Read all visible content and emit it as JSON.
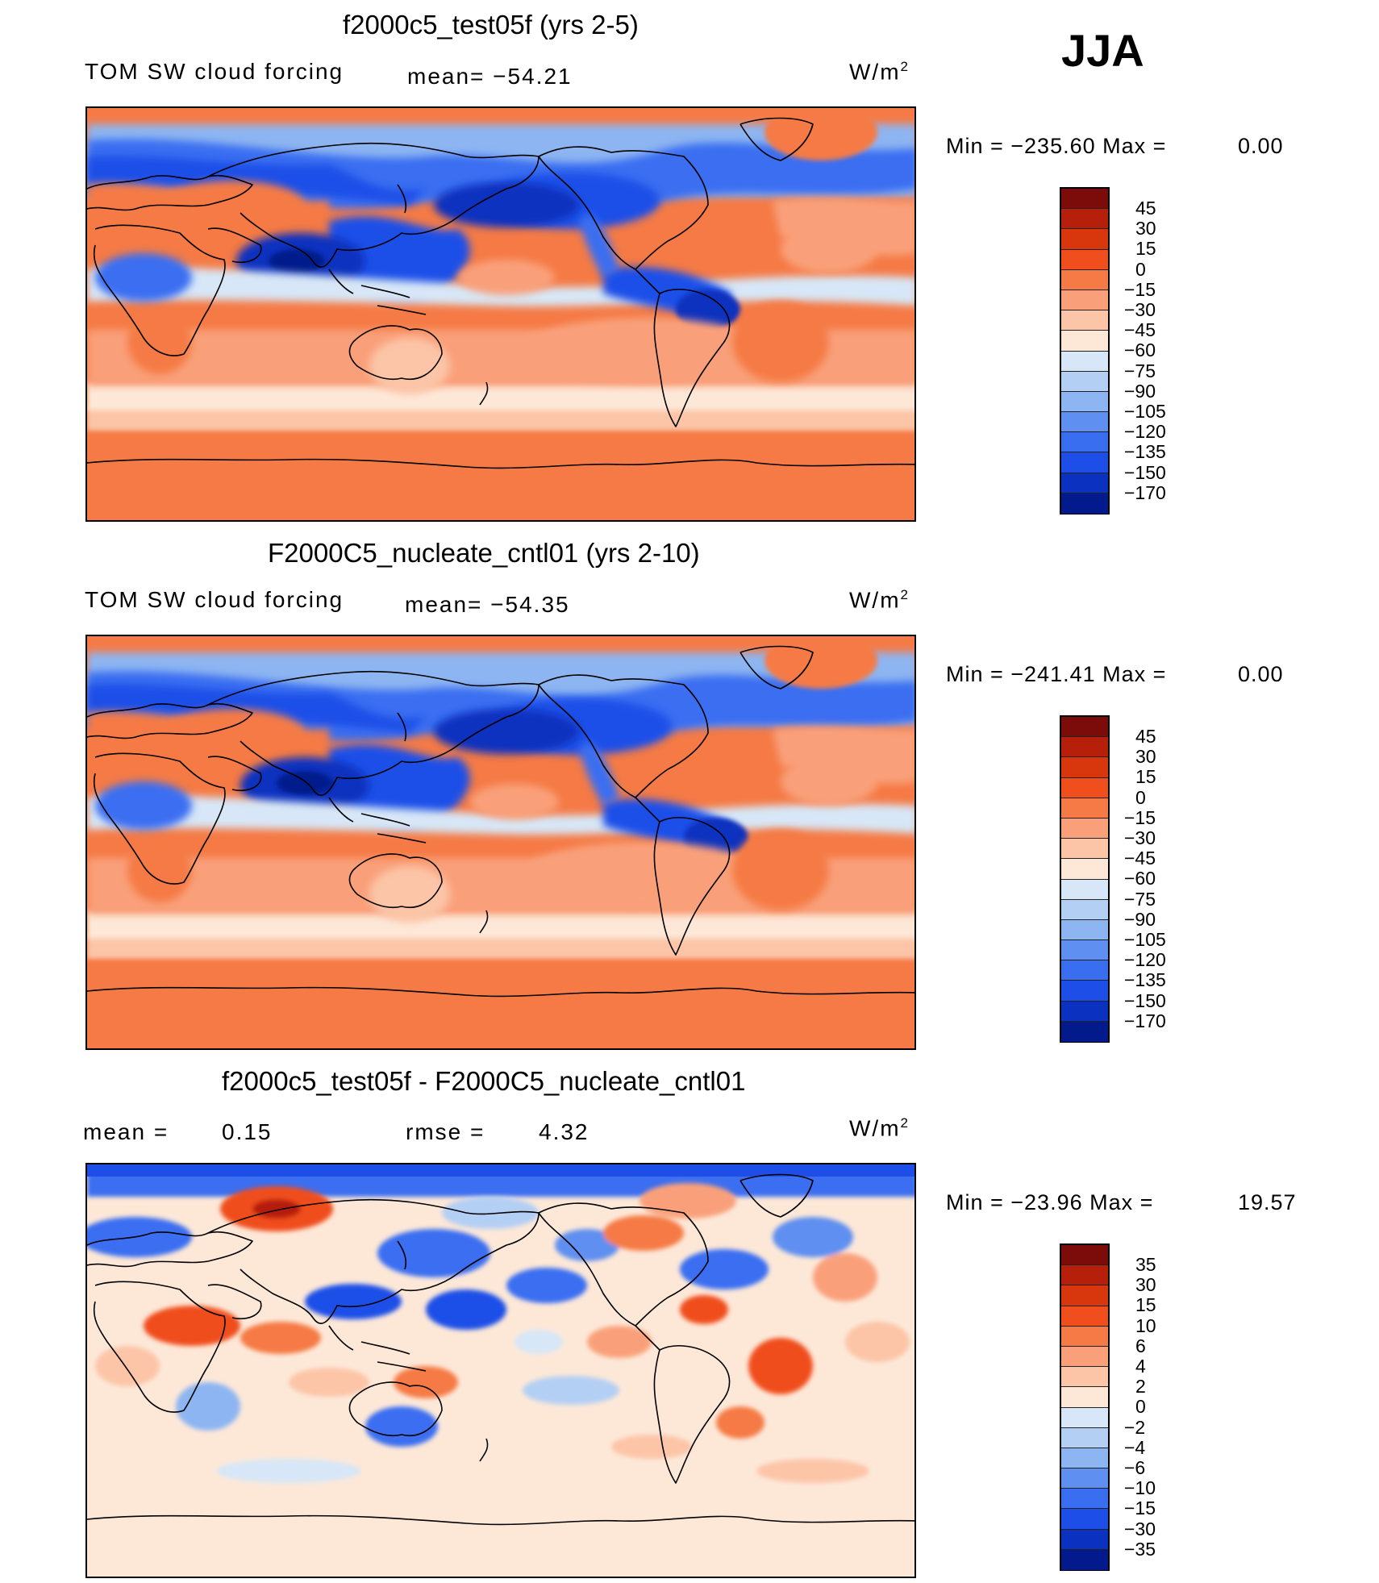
{
  "season": "JJA",
  "colors": {
    "panel_cmap": [
      "#7c0c0a",
      "#b61f0a",
      "#d8360c",
      "#f04e1c",
      "#f57a45",
      "#f9a07a",
      "#fcc5a7",
      "#fde8d8",
      "#d7e7f7",
      "#b3cff4",
      "#8db5f1",
      "#5f8ff0",
      "#3a6ef1",
      "#1d4fe8",
      "#0a31bf",
      "#031a8c"
    ],
    "diff_cmap": [
      "#7c0c0a",
      "#b61f0a",
      "#d8360c",
      "#f04e1c",
      "#f57a45",
      "#f9a07a",
      "#fcc5a7",
      "#fde8d8",
      "#d7e7f7",
      "#b3cff4",
      "#8db5f1",
      "#5f8ff0",
      "#3a6ef1",
      "#1d4fe8",
      "#0a31bf",
      "#031a8c"
    ],
    "coast": "#000000"
  },
  "panels": [
    {
      "title": "f2000c5_test05f (yrs 2-5)",
      "label": "TOM SW cloud forcing",
      "mean": "mean= −54.21",
      "units": "W/m",
      "units_sup": "2",
      "min_text": "Min  =  −235.60  Max  =",
      "max_value": "0.00",
      "levels": [
        "45",
        "30",
        "15",
        "0",
        "−15",
        "−30",
        "−45",
        "−60",
        "−75",
        "−90",
        "−105",
        "−120",
        "−135",
        "−150",
        "−170"
      ]
    },
    {
      "title": "F2000C5_nucleate_cntl01 (yrs 2-10)",
      "label": "TOM SW cloud forcing",
      "mean": "mean= −54.35",
      "units": "W/m",
      "units_sup": "2",
      "min_text": "Min  =  −241.41  Max  =",
      "max_value": "0.00",
      "levels": [
        "45",
        "30",
        "15",
        "0",
        "−15",
        "−30",
        "−45",
        "−60",
        "−75",
        "−90",
        "−105",
        "−120",
        "−135",
        "−150",
        "−170"
      ]
    },
    {
      "title": "f2000c5_test05f - F2000C5_nucleate_cntl01",
      "mean_label": "mean  =",
      "mean_value": "0.15",
      "rmse_label": "rmse  =",
      "rmse_value": "4.32",
      "units": "W/m",
      "units_sup": "2",
      "min_text": "Min  =  −23.96  Max  =",
      "max_value": "19.57",
      "levels": [
        "35",
        "30",
        "15",
        "10",
        "6",
        "4",
        "2",
        "0",
        "−2",
        "−4",
        "−6",
        "−10",
        "−15",
        "−30",
        "−35"
      ]
    }
  ]
}
